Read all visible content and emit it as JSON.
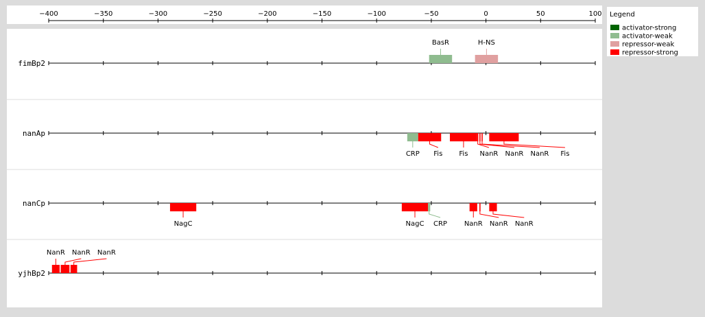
{
  "chart_data": {
    "type": "sites",
    "xlim": [
      -400,
      100
    ],
    "xticks": [
      {
        "value": -400,
        "label": "−400"
      },
      {
        "value": -350,
        "label": "−350"
      },
      {
        "value": -300,
        "label": "−300"
      },
      {
        "value": -250,
        "label": "−250"
      },
      {
        "value": -200,
        "label": "−200"
      },
      {
        "value": -150,
        "label": "−150"
      },
      {
        "value": -100,
        "label": "−100"
      },
      {
        "value": -50,
        "label": "−50"
      },
      0,
      50,
      100
    ],
    "legend_title": "Legend",
    "legend": [
      {
        "name": "activator-strong",
        "color": "#006400"
      },
      {
        "name": "activator-weak",
        "color": "#8fbc8f"
      },
      {
        "name": "repressor-weak",
        "color": "#e0a0a0"
      },
      {
        "name": "repressor-strong",
        "color": "#ff0000"
      }
    ],
    "rows": [
      {
        "name": "fimBp2",
        "side": "above",
        "sites": [
          {
            "label": "BasR",
            "kind": "activator-weak",
            "start": -52,
            "end": -31
          },
          {
            "label": "H-NS",
            "kind": "repressor-weak",
            "start": -10,
            "end": 11
          }
        ]
      },
      {
        "name": "nanAp",
        "side": "below",
        "sites": [
          {
            "label": "CRP",
            "kind": "activator-weak",
            "start": -72,
            "end": -62
          },
          {
            "label": "Fis",
            "kind": "repressor-strong",
            "start": -62,
            "end": -41
          },
          {
            "label": "Fis",
            "kind": "repressor-strong",
            "start": -33,
            "end": -8
          },
          {
            "label": "NanR",
            "kind": "repressor-strong",
            "start": -8,
            "end": -7
          },
          {
            "label": "NanR",
            "kind": "repressor-strong",
            "start": -6,
            "end": -5
          },
          {
            "label": "NanR",
            "kind": "repressor-strong",
            "start": -4,
            "end": -3
          },
          {
            "label": "Fis",
            "kind": "repressor-strong",
            "start": 3,
            "end": 30
          }
        ]
      },
      {
        "name": "nanCp",
        "side": "below",
        "sites": [
          {
            "label": "NagC",
            "kind": "repressor-strong",
            "start": -289,
            "end": -265
          },
          {
            "label": "NagC",
            "kind": "repressor-strong",
            "start": -77,
            "end": -53
          },
          {
            "label": "CRP",
            "kind": "activator-weak",
            "start": -53,
            "end": -51
          },
          {
            "label": "NanR",
            "kind": "repressor-strong",
            "start": -15,
            "end": -8
          },
          {
            "label": "NanR",
            "kind": "repressor-strong",
            "start": -6,
            "end": -5
          },
          {
            "label": "NanR",
            "kind": "repressor-strong",
            "start": 3,
            "end": 10
          }
        ]
      },
      {
        "name": "yjhBp2",
        "side": "above",
        "sites": [
          {
            "label": "NanR",
            "kind": "repressor-strong",
            "start": -397,
            "end": -390
          },
          {
            "label": "NanR",
            "kind": "repressor-strong",
            "start": -389,
            "end": -381
          },
          {
            "label": "NanR",
            "kind": "repressor-strong",
            "start": -380,
            "end": -374
          }
        ]
      }
    ]
  }
}
